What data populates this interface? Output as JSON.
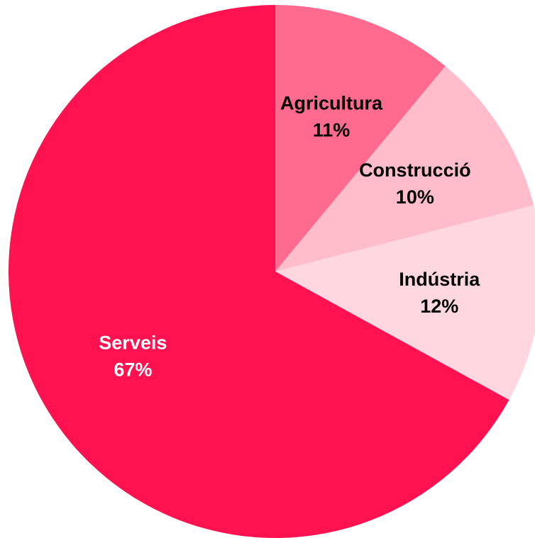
{
  "chart_data": {
    "type": "pie",
    "start_angle_deg": 0,
    "direction": "clockwise",
    "slices": [
      {
        "label": "Agricultura",
        "value": 11,
        "value_label": "11%",
        "color": "#ff6b8e",
        "label_color": "#000000"
      },
      {
        "label": "Construcció",
        "value": 10,
        "value_label": "10%",
        "color": "#ffbccb",
        "label_color": "#000000"
      },
      {
        "label": "Indústria",
        "value": 12,
        "value_label": "12%",
        "color": "#ffd7e1",
        "label_color": "#000000"
      },
      {
        "label": "Serveis",
        "value": 67,
        "value_label": "67%",
        "color": "#ff124f",
        "label_color": "#ffffff"
      }
    ]
  }
}
